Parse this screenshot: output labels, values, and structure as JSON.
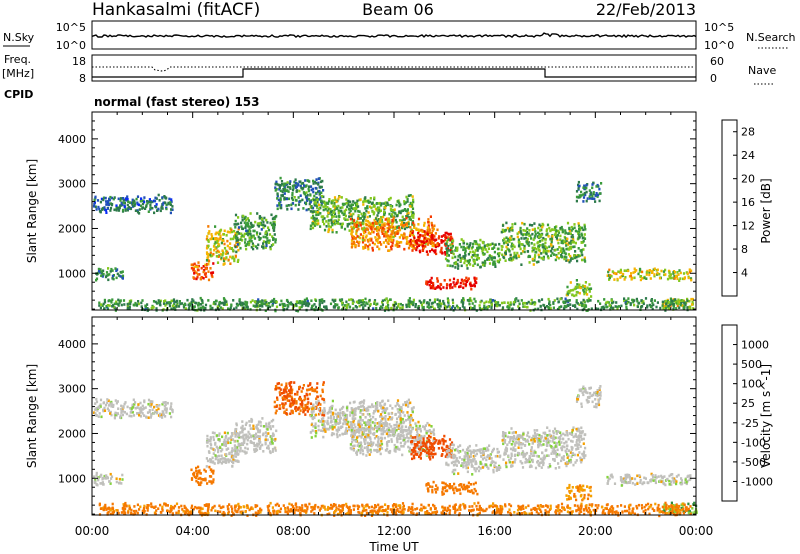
{
  "header": {
    "station": "Hankasalmi (fitACF)",
    "beam": "Beam 06",
    "date": "22/Feb/2013"
  },
  "strip_panels": {
    "nsky_label": "N.Sky",
    "nsky_ticks": [
      "10^5",
      "10^0"
    ],
    "nsearch_ticks": [
      "10^5",
      "10^0"
    ],
    "nsearch_label": "N.Search",
    "freq_label_line1": "Freq.",
    "freq_label_line2": "[MHz]",
    "freq_ticks": [
      "18",
      "8"
    ],
    "nave_ticks": [
      "60",
      "0"
    ],
    "nave_label": "Nave",
    "cpid_label": "CPID",
    "cpid_text": "normal (fast stereo) 153"
  },
  "colors": {
    "power_scale": [
      "#0a2cf5",
      "#2050b8",
      "#2d7a4a",
      "#3a9a3a",
      "#84c81e",
      "#f5b400",
      "#f57a00",
      "#f53a00",
      "#e60000"
    ],
    "velocity_scale": [
      "#1c3cd8",
      "#2a6ab0",
      "#2e8a3e",
      "#84d23c",
      "#c0c0bc",
      "#c0c0bc",
      "#f5a000",
      "#f57800",
      "#f04c00",
      "#e00000"
    ]
  },
  "chart_data": [
    {
      "type": "heatmap",
      "name": "power",
      "xlabel": "",
      "ylabel": "Slant Range [km]",
      "x_ticks": [
        "00:00",
        "04:00",
        "08:00",
        "12:00",
        "16:00",
        "20:00",
        "00:00"
      ],
      "x_range_hours": [
        0,
        24
      ],
      "y_ticks": [
        1000,
        2000,
        3000,
        4000
      ],
      "ylim": [
        180,
        4600
      ],
      "colorbar_label": "Power [dB]",
      "colorbar_ticks": [
        "4",
        "8",
        "12",
        "16",
        "20",
        "24",
        "28"
      ],
      "colorbar_range": [
        0,
        30
      ],
      "regions": [
        {
          "t": [
            0.0,
            3.2
          ],
          "r": [
            2350,
            2800
          ],
          "v": 7
        },
        {
          "t": [
            0.0,
            1.2
          ],
          "r": [
            850,
            1150
          ],
          "v": 9
        },
        {
          "t": [
            3.9,
            4.8
          ],
          "r": [
            850,
            1300
          ],
          "v": 24
        },
        {
          "t": [
            4.5,
            5.8
          ],
          "r": [
            1200,
            2100
          ],
          "v": 17
        },
        {
          "t": [
            5.6,
            7.3
          ],
          "r": [
            1500,
            2400
          ],
          "v": 11
        },
        {
          "t": [
            7.2,
            9.2
          ],
          "r": [
            2400,
            3200
          ],
          "v": 9
        },
        {
          "t": [
            8.6,
            12.8
          ],
          "r": [
            1900,
            2800
          ],
          "v": 13
        },
        {
          "t": [
            10.2,
            13.6
          ],
          "r": [
            1500,
            2300
          ],
          "v": 21
        },
        {
          "t": [
            12.6,
            14.3
          ],
          "r": [
            1400,
            2000
          ],
          "v": 27
        },
        {
          "t": [
            13.2,
            15.3
          ],
          "r": [
            650,
            950
          ],
          "v": 28
        },
        {
          "t": [
            14.0,
            16.2
          ],
          "r": [
            1100,
            1800
          ],
          "v": 12
        },
        {
          "t": [
            16.2,
            19.6
          ],
          "r": [
            1200,
            2200
          ],
          "v": 13
        },
        {
          "t": [
            19.2,
            20.2
          ],
          "r": [
            2600,
            3100
          ],
          "v": 8
        },
        {
          "t": [
            20.4,
            23.8
          ],
          "r": [
            850,
            1150
          ],
          "v": 16
        },
        {
          "t": [
            22.6,
            24.0
          ],
          "r": [
            200,
            500
          ],
          "v": 17
        },
        {
          "t": [
            0.0,
            24.0
          ],
          "r": [
            180,
            480
          ],
          "v": 11
        },
        {
          "t": [
            18.8,
            19.8
          ],
          "r": [
            500,
            900
          ],
          "v": 14
        }
      ]
    },
    {
      "type": "heatmap",
      "name": "velocity",
      "xlabel": "Time UT",
      "ylabel": "Slant Range [km]",
      "x_ticks": [
        "00:00",
        "04:00",
        "08:00",
        "12:00",
        "16:00",
        "20:00",
        "00:00"
      ],
      "x_range_hours": [
        0,
        24
      ],
      "y_ticks": [
        1000,
        2000,
        3000,
        4000
      ],
      "ylim": [
        180,
        4600
      ],
      "colorbar_label": "Velocity [m s^-1]",
      "colorbar_ticks": [
        "1000",
        "500",
        "100",
        "25",
        "-25",
        "-100",
        "-500",
        "-1000"
      ],
      "regions": [
        {
          "t": [
            0.0,
            3.2
          ],
          "r": [
            2350,
            2800
          ],
          "v": 0
        },
        {
          "t": [
            0.0,
            1.2
          ],
          "r": [
            850,
            1150
          ],
          "v": 0
        },
        {
          "t": [
            3.9,
            4.8
          ],
          "r": [
            850,
            1300
          ],
          "v": -150
        },
        {
          "t": [
            4.5,
            5.8
          ],
          "r": [
            1200,
            2100
          ],
          "v": 0
        },
        {
          "t": [
            5.6,
            7.3
          ],
          "r": [
            1500,
            2400
          ],
          "v": 0
        },
        {
          "t": [
            7.2,
            9.2
          ],
          "r": [
            2400,
            3200
          ],
          "v": -300
        },
        {
          "t": [
            8.6,
            12.8
          ],
          "r": [
            1900,
            2800
          ],
          "v": 0
        },
        {
          "t": [
            10.2,
            13.6
          ],
          "r": [
            1500,
            2300
          ],
          "v": 0
        },
        {
          "t": [
            12.6,
            14.3
          ],
          "r": [
            1400,
            2000
          ],
          "v": -600
        },
        {
          "t": [
            13.2,
            15.3
          ],
          "r": [
            650,
            950
          ],
          "v": -200
        },
        {
          "t": [
            14.0,
            16.2
          ],
          "r": [
            1100,
            1800
          ],
          "v": 0
        },
        {
          "t": [
            16.2,
            19.6
          ],
          "r": [
            1200,
            2200
          ],
          "v": 0
        },
        {
          "t": [
            19.2,
            20.2
          ],
          "r": [
            2600,
            3100
          ],
          "v": 0
        },
        {
          "t": [
            20.4,
            23.8
          ],
          "r": [
            850,
            1150
          ],
          "v": 0
        },
        {
          "t": [
            22.6,
            24.0
          ],
          "r": [
            200,
            500
          ],
          "v": 60
        },
        {
          "t": [
            0.0,
            24.0
          ],
          "r": [
            180,
            480
          ],
          "v": -120
        },
        {
          "t": [
            18.8,
            19.8
          ],
          "r": [
            500,
            900
          ],
          "v": -100
        }
      ]
    }
  ]
}
